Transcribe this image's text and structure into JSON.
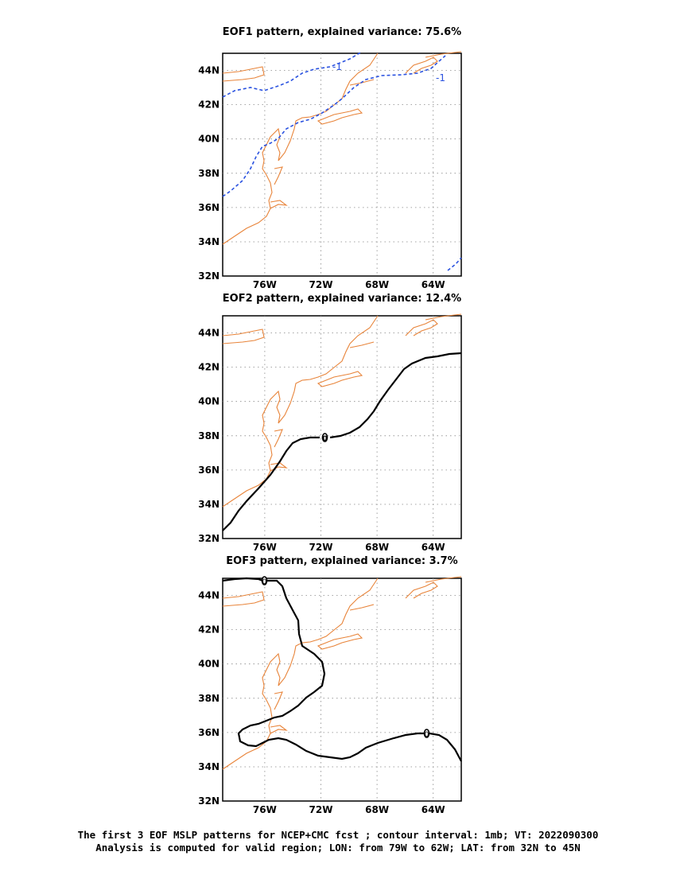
{
  "panels": [
    {
      "title": "EOF1 pattern, explained variance: 75.6%",
      "contour_labels": [
        "-1",
        "-1"
      ],
      "contour_style": "dashed"
    },
    {
      "title": "EOF2 pattern, explained variance: 12.4%",
      "contour_labels": [
        "0"
      ],
      "contour_style": "solid"
    },
    {
      "title": "EOF3 pattern, explained variance: 3.7%",
      "contour_labels": [
        "0",
        "0"
      ],
      "contour_style": "solid"
    }
  ],
  "lat_ticks": [
    "44N",
    "42N",
    "40N",
    "38N",
    "36N",
    "34N",
    "32N"
  ],
  "lon_ticks": [
    "76W",
    "72W",
    "68W",
    "64W"
  ],
  "colors": {
    "coastline": "#e8843a",
    "negative_contour": "#2a52e0",
    "zero_contour": "#000000",
    "grid": "#888888"
  },
  "caption": {
    "line1": "The first 3 EOF MSLP patterns for NCEP+CMC fcst ; contour interval: 1mb; VT: 2022090300",
    "line2": "Analysis is computed for valid region; LON: from 79W to 62W; LAT: from 32N to 45N"
  }
}
